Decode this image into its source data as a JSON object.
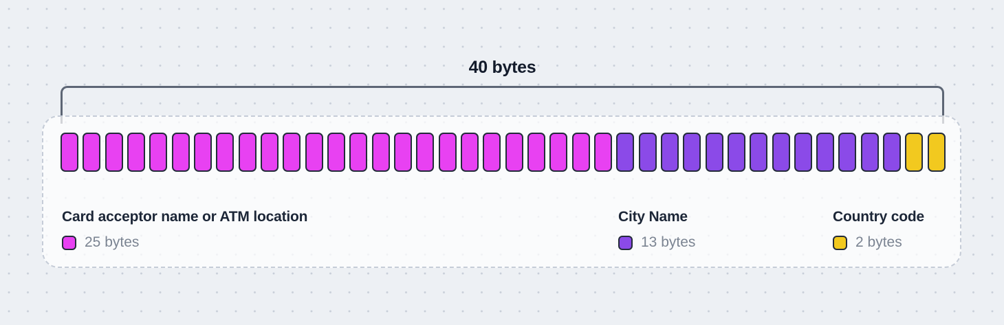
{
  "bracket": {
    "label": "40 bytes",
    "total_bytes": 40
  },
  "colors": {
    "card_acceptor": "#e841f2",
    "city_name": "#8b4ae8",
    "country_code": "#f2c91f",
    "cell_border": "#232b3a"
  },
  "segments": [
    {
      "name": "card-acceptor",
      "label": "Card acceptor name or ATM location",
      "bytes_label": "25 bytes",
      "count": 25,
      "color": "#e841f2"
    },
    {
      "name": "city-name",
      "label": "City Name",
      "bytes_label": "13 bytes",
      "count": 13,
      "color": "#8b4ae8"
    },
    {
      "name": "country-code",
      "label": "Country code",
      "bytes_label": "2 bytes",
      "count": 2,
      "color": "#f2c91f"
    }
  ]
}
